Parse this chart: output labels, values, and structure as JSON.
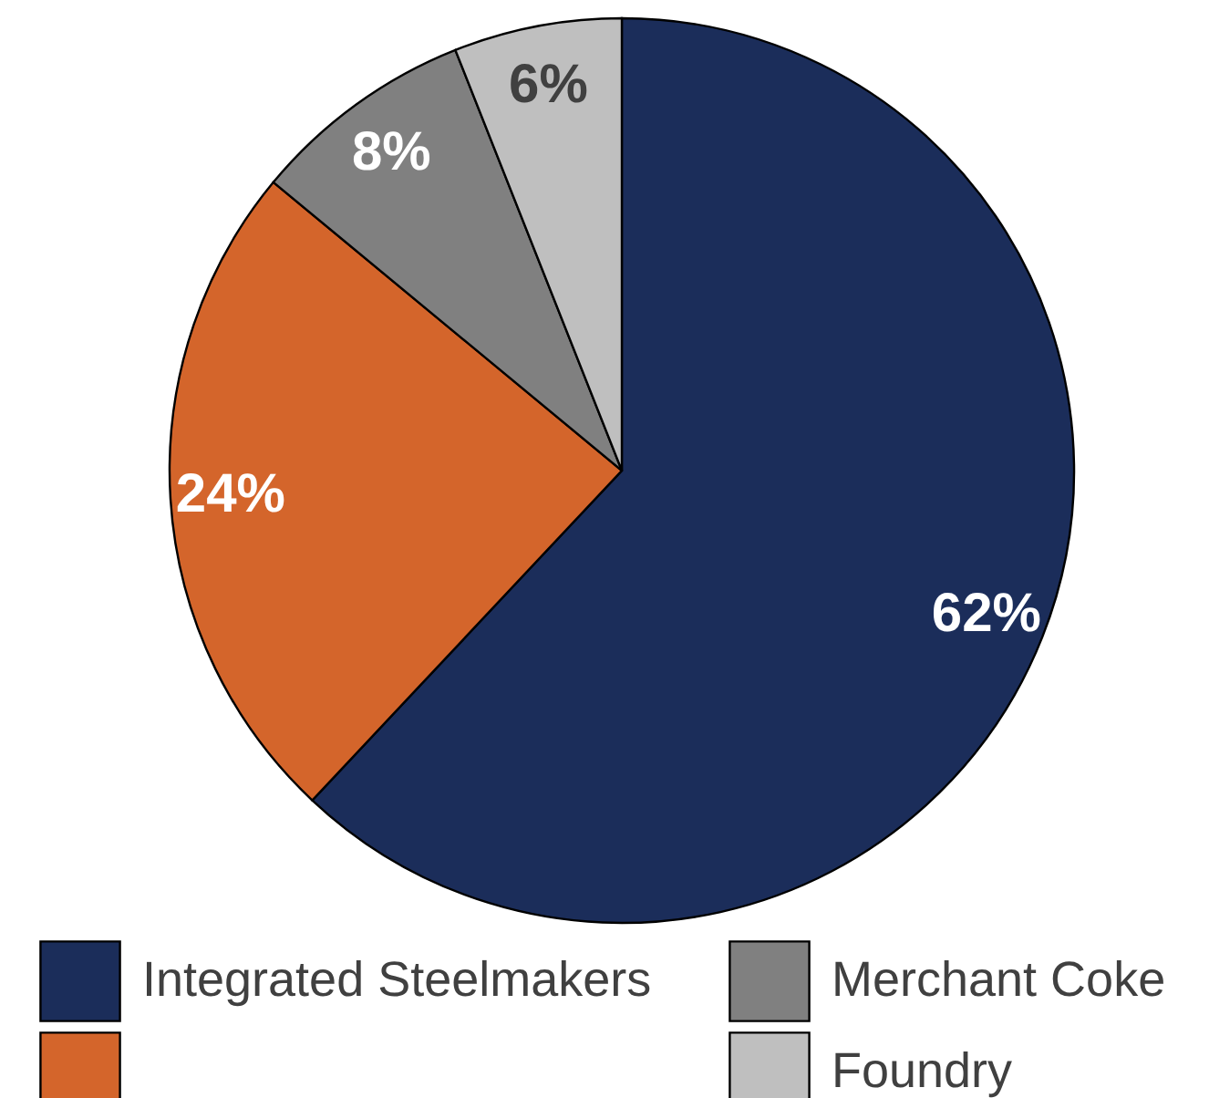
{
  "chart_data": {
    "type": "pie",
    "categories": [
      "Integrated Steelmakers",
      null,
      "Merchant Coke",
      "Foundry"
    ],
    "values": [
      62,
      24,
      8,
      6
    ],
    "value_labels": [
      "62%",
      "24%",
      "8%",
      "6%"
    ],
    "colors": [
      "#1b2d5a",
      "#d4652b",
      "#808080",
      "#bfbfbf"
    ],
    "legend": "bottom"
  }
}
